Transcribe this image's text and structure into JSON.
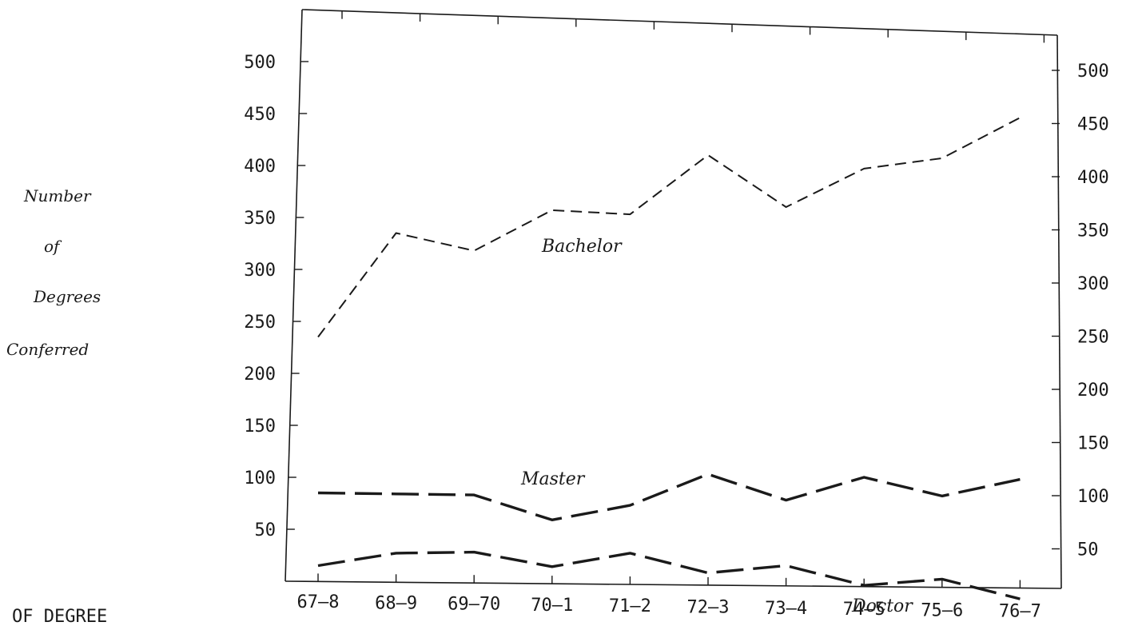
{
  "chart_data": {
    "type": "line",
    "categories": [
      "67–8",
      "68–9",
      "69–70",
      "70–1",
      "71–2",
      "72–3",
      "73–4",
      "74–5",
      "75–6",
      "76–7"
    ],
    "ylabel": [
      "Number",
      "of",
      "Degrees",
      "Conferred"
    ],
    "ylim": [
      0,
      500
    ],
    "yticks": [
      50,
      100,
      150,
      200,
      250,
      300,
      350,
      400,
      450,
      500
    ],
    "grid": false,
    "series": [
      {
        "name": "Bachelor",
        "values": [
          235,
          335,
          318,
          357,
          353,
          410,
          360,
          397,
          407,
          446
        ],
        "color": "#1a1a1a",
        "dash": "bachelor"
      },
      {
        "name": "Master",
        "values": [
          85,
          84,
          83,
          59,
          73,
          103,
          78,
          100,
          82,
          98
        ],
        "color": "#1a1a1a",
        "dash": "master"
      },
      {
        "name": "Doctor",
        "values": [
          15,
          27,
          28,
          14,
          27,
          8,
          15,
          -4,
          2,
          -17
        ],
        "color": "#1a1a1a",
        "dash": "doctor"
      }
    ]
  },
  "footer_text": "OF DEGREE"
}
